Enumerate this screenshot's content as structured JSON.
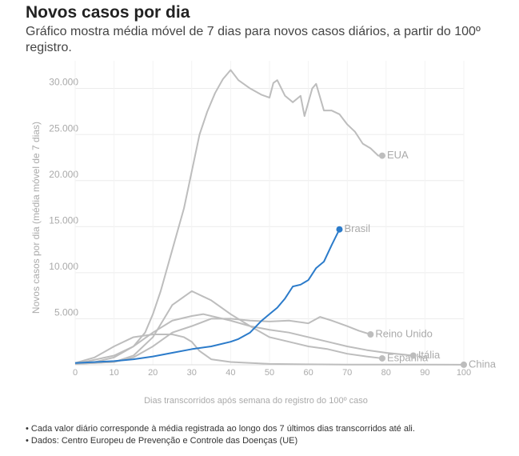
{
  "chart_data": {
    "type": "line",
    "title": "Novos casos por dia",
    "subtitle": "Gráfico mostra média móvel de 7 dias para novos casos diários, a partir do 100º registro.",
    "y_label": "Novos casos por dia (média móvel de 7 dias)",
    "x_label": "Dias transcorridos após semana do registro do 100º caso",
    "notes": [
      "• Cada valor diário corresponde à média registrada ao longo dos 7 últimos dias transcorridos até ali.",
      "• Dados: Centro Europeu de Prevenção e Controle das Doenças (UE)"
    ],
    "xlim": [
      0,
      100
    ],
    "xticks": [
      0,
      10,
      20,
      30,
      40,
      50,
      60,
      70,
      80,
      90,
      100
    ],
    "ylim": [
      0,
      33000
    ],
    "yticks": [
      {
        "value": 5000,
        "label": "5.000"
      },
      {
        "value": 10000,
        "label": "10.000"
      },
      {
        "value": 15000,
        "label": "15.000"
      },
      {
        "value": 20000,
        "label": "20.000"
      },
      {
        "value": 25000,
        "label": "25.000"
      },
      {
        "value": 30000,
        "label": "30.000"
      }
    ],
    "grid": true,
    "series": [
      {
        "name": "EUA",
        "color": "#bdbdbd",
        "x": [
          0,
          5,
          10,
          15,
          18,
          20,
          22,
          24,
          26,
          28,
          30,
          32,
          34,
          36,
          38,
          40,
          42,
          45,
          48,
          50,
          51,
          52,
          54,
          56,
          58,
          59,
          61,
          62,
          64,
          66,
          68,
          70,
          72,
          74,
          76,
          78,
          79
        ],
        "values": [
          100,
          300,
          800,
          2000,
          3500,
          5500,
          8000,
          11000,
          14000,
          17000,
          21000,
          25000,
          27500,
          29500,
          31000,
          32000,
          30900,
          30000,
          29300,
          29000,
          30600,
          30900,
          29200,
          28500,
          29200,
          27000,
          30000,
          30500,
          27600,
          27600,
          27200,
          26100,
          25300,
          24000,
          23500,
          22700,
          22700
        ]
      },
      {
        "name": "Reino Unido",
        "color": "#bdbdbd",
        "x": [
          0,
          10,
          15,
          20,
          25,
          30,
          35,
          40,
          45,
          50,
          55,
          60,
          63,
          66,
          70,
          73,
          76
        ],
        "values": [
          100,
          300,
          800,
          2000,
          3500,
          4200,
          5000,
          5000,
          4800,
          4700,
          4800,
          4500,
          5200,
          4800,
          4200,
          3700,
          3300
        ]
      },
      {
        "name": "Espanha",
        "color": "#bdbdbd",
        "x": [
          0,
          10,
          15,
          20,
          25,
          30,
          35,
          40,
          45,
          50,
          55,
          60,
          65,
          70,
          75,
          79
        ],
        "values": [
          100,
          300,
          1000,
          3000,
          6500,
          8000,
          7000,
          5500,
          4200,
          3000,
          2500,
          2000,
          1700,
          1200,
          900,
          700
        ]
      },
      {
        "name": "Itália",
        "color": "#bdbdbd",
        "x": [
          0,
          10,
          15,
          20,
          25,
          30,
          33,
          40,
          45,
          50,
          55,
          60,
          65,
          70,
          75,
          80,
          87
        ],
        "values": [
          100,
          1000,
          2000,
          3500,
          4800,
          5300,
          5500,
          4800,
          4200,
          3800,
          3500,
          3000,
          2500,
          2000,
          1600,
          1300,
          1000
        ]
      },
      {
        "name": "China",
        "color": "#bdbdbd",
        "x": [
          0,
          5,
          10,
          15,
          20,
          25,
          28,
          30,
          32,
          35,
          40,
          50,
          60,
          70,
          80,
          90,
          100
        ],
        "values": [
          200,
          800,
          2000,
          3000,
          3300,
          3300,
          3000,
          2500,
          1500,
          600,
          300,
          100,
          50,
          20,
          20,
          20,
          10
        ]
      },
      {
        "name": "Brasil",
        "color": "#2b7bca",
        "x": [
          0,
          10,
          15,
          20,
          25,
          30,
          35,
          40,
          42,
          45,
          48,
          50,
          52,
          54,
          56,
          58,
          60,
          62,
          64,
          66,
          68
        ],
        "values": [
          200,
          400,
          600,
          900,
          1300,
          1700,
          2000,
          2500,
          2800,
          3500,
          4800,
          5500,
          6200,
          7200,
          8500,
          8700,
          9200,
          10500,
          11200,
          13000,
          14700
        ]
      }
    ]
  }
}
